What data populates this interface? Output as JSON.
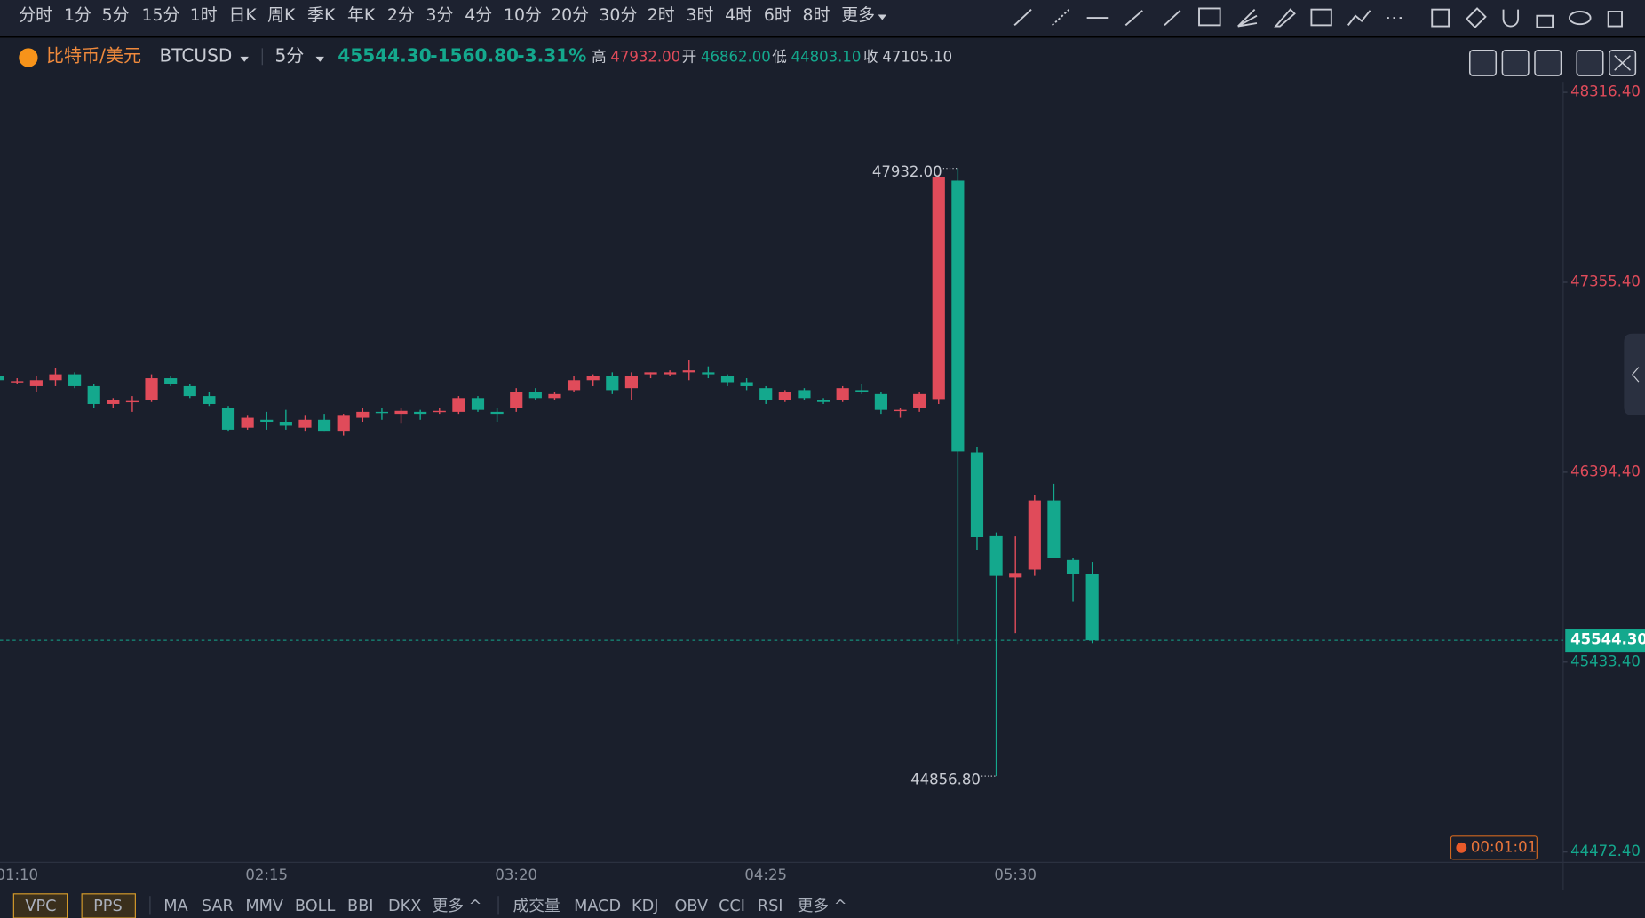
{
  "toolbar": {
    "periods": [
      "分时",
      "1分",
      "5分",
      "15分",
      "1时",
      "日K",
      "周K",
      "季K",
      "年K",
      "2分",
      "3分",
      "4分",
      "10分",
      "20分",
      "30分",
      "2时",
      "3时",
      "4时",
      "6时",
      "8时",
      "更多"
    ],
    "active_period": 2
  },
  "header": {
    "symbol_name": "比特币/美元",
    "symbol_code": "BTCUSD",
    "interval": "5分",
    "price": "45544.30",
    "change": "-1560.80",
    "change_percent": "-3.31%",
    "stats": [
      {
        "label": "高",
        "value": "47932.00"
      },
      {
        "label": "开",
        "value": "46862.00"
      },
      {
        "label": "低",
        "value": "44803.10"
      },
      {
        "label": "收",
        "value": "47105.10"
      }
    ]
  },
  "countdown": "00:01:01",
  "indicators": {
    "main": [
      "VPC",
      "PPS"
    ],
    "overlay": [
      "MA",
      "SAR",
      "MMV",
      "BOLL",
      "BBI",
      "DKX",
      "更多 ^"
    ],
    "sub": [
      "成交量",
      "MACD",
      "KDJ",
      "OBV",
      "CCI",
      "RSI",
      "更多 ^"
    ]
  },
  "chart_data": {
    "type": "candlestick",
    "categories": [
      null,
      "01:10",
      null,
      null,
      null,
      null,
      null,
      null,
      null,
      null,
      null,
      null,
      null,
      null,
      "02:15",
      null,
      null,
      null,
      null,
      null,
      null,
      null,
      null,
      null,
      null,
      null,
      null,
      "03:20",
      null,
      null,
      null,
      null,
      null,
      null,
      null,
      null,
      null,
      null,
      null,
      null,
      "04:25",
      null,
      null,
      null,
      null,
      null,
      null,
      null,
      null,
      null,
      null,
      null,
      null,
      "05:30",
      null,
      null,
      null,
      null
    ],
    "open": [
      46880,
      46850,
      46830,
      46860,
      46890,
      46830,
      46740,
      46750,
      46760,
      46870,
      46830,
      46780,
      46720,
      46620,
      46660,
      46650,
      46620,
      46660,
      46600,
      46670,
      46700,
      46690,
      46700,
      46700,
      46700,
      46770,
      46700,
      46720,
      46800,
      46770,
      46810,
      46860,
      46880,
      46820,
      46890,
      46890,
      46900,
      46900,
      46880,
      46850,
      46820,
      46760,
      46810,
      46760,
      46760,
      46810,
      46790,
      46710,
      46720,
      46765,
      47870,
      46495,
      46071,
      45862,
      45902,
      46252,
      45950,
      45880
    ],
    "high": [
      46900,
      46870,
      46880,
      46920,
      46900,
      46840,
      46770,
      46780,
      46890,
      46880,
      46840,
      46800,
      46730,
      46680,
      46700,
      46710,
      46680,
      46690,
      46690,
      46720,
      46720,
      46720,
      46710,
      46720,
      46780,
      46780,
      46720,
      46820,
      46820,
      46800,
      46880,
      46890,
      46900,
      46900,
      46900,
      46910,
      46960,
      46930,
      46890,
      46870,
      46830,
      46810,
      46820,
      46770,
      46830,
      46840,
      46800,
      46720,
      46800,
      47900,
      47932,
      46520,
      46090,
      46070,
      46280,
      46336,
      45960,
      45940
    ],
    "low": [
      46840,
      46840,
      46800,
      46830,
      46820,
      46720,
      46720,
      46700,
      46750,
      46830,
      46770,
      46730,
      46600,
      46610,
      46610,
      46610,
      46600,
      46600,
      46580,
      46650,
      46660,
      46640,
      46660,
      46690,
      46690,
      46700,
      46650,
      46700,
      46760,
      46760,
      46800,
      46830,
      46790,
      46760,
      46870,
      46880,
      46860,
      46870,
      46830,
      46810,
      46740,
      46750,
      46760,
      46740,
      46750,
      46790,
      46690,
      46670,
      46700,
      46740,
      45526,
      46000,
      44856.8,
      45580,
      45870,
      45960,
      45740,
      45530
    ],
    "close": [
      46860,
      46855,
      46860,
      46890,
      46830,
      46740,
      46760,
      46755,
      46870,
      46840,
      46780,
      46740,
      46610,
      46670,
      46650,
      46630,
      46660,
      46600,
      46680,
      46700,
      46695,
      46705,
      46690,
      46705,
      46770,
      46710,
      46690,
      46800,
      46770,
      46790,
      46860,
      46880,
      46810,
      46880,
      46900,
      46900,
      46910,
      46890,
      46850,
      46830,
      46760,
      46800,
      46770,
      46750,
      46820,
      46800,
      46710,
      46710,
      46790,
      47890,
      46500,
      46066,
      45870,
      45885,
      46252,
      45960,
      45880,
      45544.3
    ],
    "up_color": "#e04b5a",
    "down_color": "#14a88d",
    "ylim": [
      44420,
      48370
    ],
    "yticks": [
      {
        "value": 44472.4,
        "label": "44472.40"
      },
      {
        "value": 45433.4,
        "label": "45433.40"
      },
      {
        "value": 46394.4,
        "label": "46394.40"
      },
      {
        "value": 47355.4,
        "label": "47355.40"
      },
      {
        "value": 48316.4,
        "label": "48316.40"
      }
    ],
    "last_price": {
      "value": 45544.3,
      "label": "45544.30"
    },
    "max_label": {
      "value": 47932,
      "label": "47932.00"
    },
    "min_label": {
      "value": 44856.8,
      "label": "44856.80"
    },
    "grid": false
  }
}
